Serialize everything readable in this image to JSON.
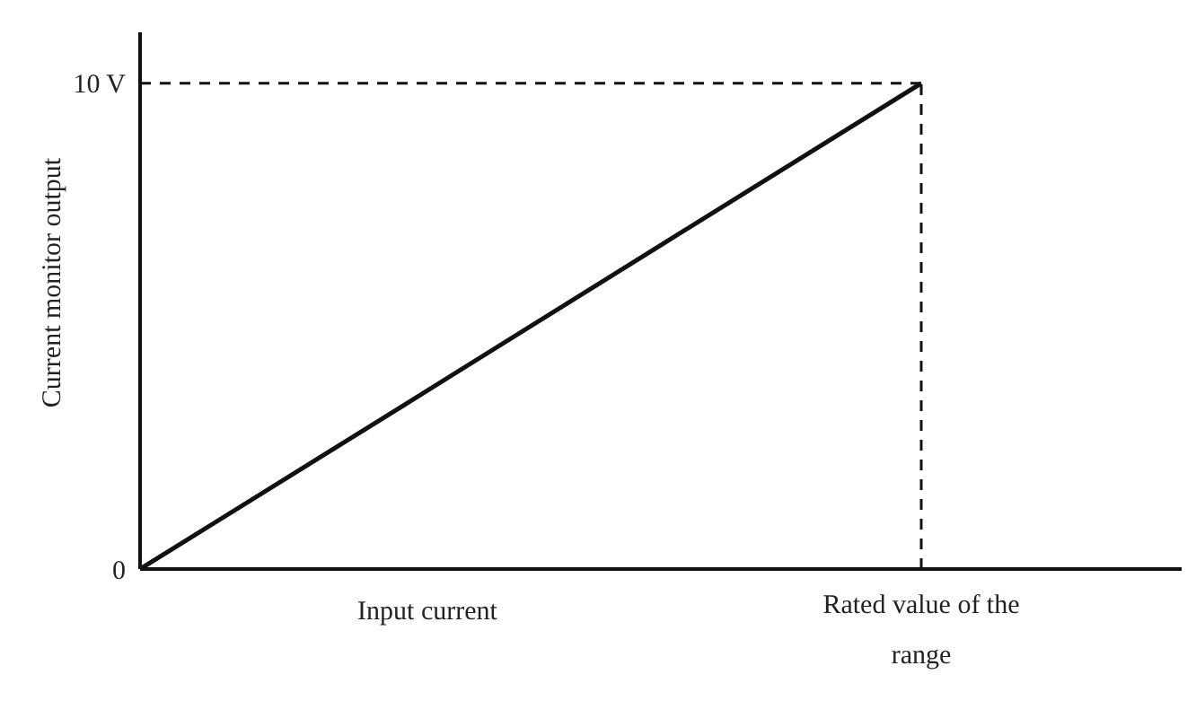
{
  "chart_data": {
    "type": "line",
    "xlabel": "Input current",
    "ylabel": "Current monitor output",
    "categories": [
      null,
      null,
      null,
      "Rated value of the range",
      null
    ],
    "series": [
      {
        "color": "#111111",
        "values": [
          0,
          3.33,
          6.67,
          10,
          null
        ]
      }
    ],
    "ylim": [
      0,
      11.05
    ],
    "yticks": [
      0,
      {
        "value": 10,
        "label": "10 V"
      }
    ],
    "ref_lines": [
      {
        "axis": "x",
        "value": "Rated value of the range",
        "line_style": "dashed",
        "color": "#111111"
      },
      {
        "axis": "y",
        "value": 10,
        "line_style": "dashed",
        "color": "#111111"
      }
    ],
    "grid": false,
    "legend": false,
    "marker": "none",
    "line_style": "solid"
  }
}
